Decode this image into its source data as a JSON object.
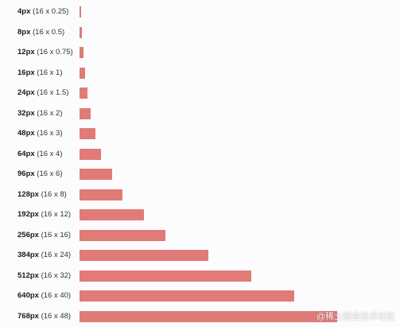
{
  "rows": [
    {
      "px": "4px",
      "calc": " (16 x 0.25)",
      "value": 4
    },
    {
      "px": "8px",
      "calc": " (16 x 0.5)",
      "value": 8
    },
    {
      "px": "12px",
      "calc": " (16 x 0.75)",
      "value": 12
    },
    {
      "px": "16px",
      "calc": " (16 x 1)",
      "value": 16
    },
    {
      "px": "24px",
      "calc": " (16 x 1.5)",
      "value": 24
    },
    {
      "px": "32px",
      "calc": " (16 x 2)",
      "value": 32
    },
    {
      "px": "48px",
      "calc": " (16 x 3)",
      "value": 48
    },
    {
      "px": "64px",
      "calc": " (16 x 4)",
      "value": 64
    },
    {
      "px": "96px",
      "calc": " (16 x 6)",
      "value": 96
    },
    {
      "px": "128px",
      "calc": " (16 x 8)",
      "value": 128
    },
    {
      "px": "192px",
      "calc": " (16 x 12)",
      "value": 192
    },
    {
      "px": "256px",
      "calc": " (16 x 16)",
      "value": 256
    },
    {
      "px": "384px",
      "calc": " (16 x 24)",
      "value": 384
    },
    {
      "px": "512px",
      "calc": " (16 x 32)",
      "value": 512
    },
    {
      "px": "640px",
      "calc": " (16 x 40)",
      "value": 640
    },
    {
      "px": "768px",
      "calc": " (16 x 48)",
      "value": 768
    }
  ],
  "colors": {
    "bar": "#e07b78"
  },
  "watermark": "@稀土掘金技术社区"
}
